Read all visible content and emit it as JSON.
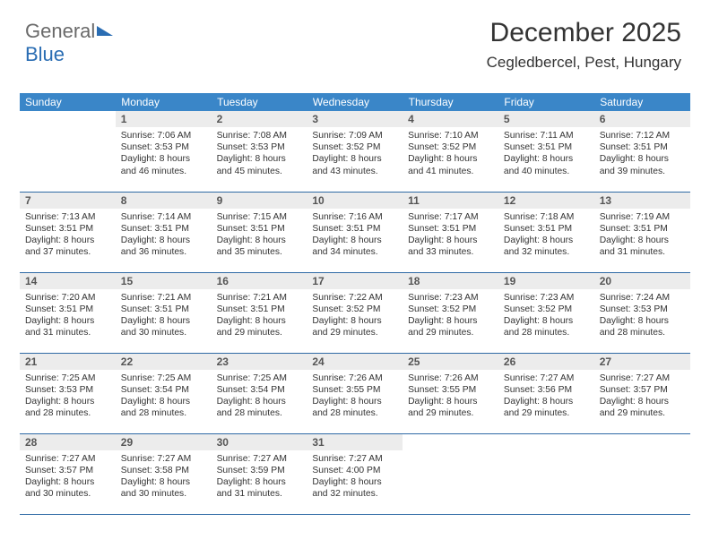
{
  "logo": {
    "part1": "General",
    "part2": "Blue"
  },
  "header": {
    "month": "December 2025",
    "location": "Cegledbercel, Pest, Hungary"
  },
  "colors": {
    "header_bg": "#3a86c8",
    "header_text": "#ffffff",
    "daynum_bg": "#ececec",
    "rule": "#2f6aa5",
    "brand_gray": "#6a6a6a",
    "brand_blue": "#2a6db3"
  },
  "weekdays": [
    "Sunday",
    "Monday",
    "Tuesday",
    "Wednesday",
    "Thursday",
    "Friday",
    "Saturday"
  ],
  "weeks": [
    [
      {
        "day": "",
        "sunrise": "",
        "sunset": "",
        "daylight": ""
      },
      {
        "day": "1",
        "sunrise": "Sunrise: 7:06 AM",
        "sunset": "Sunset: 3:53 PM",
        "daylight": "Daylight: 8 hours and 46 minutes."
      },
      {
        "day": "2",
        "sunrise": "Sunrise: 7:08 AM",
        "sunset": "Sunset: 3:53 PM",
        "daylight": "Daylight: 8 hours and 45 minutes."
      },
      {
        "day": "3",
        "sunrise": "Sunrise: 7:09 AM",
        "sunset": "Sunset: 3:52 PM",
        "daylight": "Daylight: 8 hours and 43 minutes."
      },
      {
        "day": "4",
        "sunrise": "Sunrise: 7:10 AM",
        "sunset": "Sunset: 3:52 PM",
        "daylight": "Daylight: 8 hours and 41 minutes."
      },
      {
        "day": "5",
        "sunrise": "Sunrise: 7:11 AM",
        "sunset": "Sunset: 3:51 PM",
        "daylight": "Daylight: 8 hours and 40 minutes."
      },
      {
        "day": "6",
        "sunrise": "Sunrise: 7:12 AM",
        "sunset": "Sunset: 3:51 PM",
        "daylight": "Daylight: 8 hours and 39 minutes."
      }
    ],
    [
      {
        "day": "7",
        "sunrise": "Sunrise: 7:13 AM",
        "sunset": "Sunset: 3:51 PM",
        "daylight": "Daylight: 8 hours and 37 minutes."
      },
      {
        "day": "8",
        "sunrise": "Sunrise: 7:14 AM",
        "sunset": "Sunset: 3:51 PM",
        "daylight": "Daylight: 8 hours and 36 minutes."
      },
      {
        "day": "9",
        "sunrise": "Sunrise: 7:15 AM",
        "sunset": "Sunset: 3:51 PM",
        "daylight": "Daylight: 8 hours and 35 minutes."
      },
      {
        "day": "10",
        "sunrise": "Sunrise: 7:16 AM",
        "sunset": "Sunset: 3:51 PM",
        "daylight": "Daylight: 8 hours and 34 minutes."
      },
      {
        "day": "11",
        "sunrise": "Sunrise: 7:17 AM",
        "sunset": "Sunset: 3:51 PM",
        "daylight": "Daylight: 8 hours and 33 minutes."
      },
      {
        "day": "12",
        "sunrise": "Sunrise: 7:18 AM",
        "sunset": "Sunset: 3:51 PM",
        "daylight": "Daylight: 8 hours and 32 minutes."
      },
      {
        "day": "13",
        "sunrise": "Sunrise: 7:19 AM",
        "sunset": "Sunset: 3:51 PM",
        "daylight": "Daylight: 8 hours and 31 minutes."
      }
    ],
    [
      {
        "day": "14",
        "sunrise": "Sunrise: 7:20 AM",
        "sunset": "Sunset: 3:51 PM",
        "daylight": "Daylight: 8 hours and 31 minutes."
      },
      {
        "day": "15",
        "sunrise": "Sunrise: 7:21 AM",
        "sunset": "Sunset: 3:51 PM",
        "daylight": "Daylight: 8 hours and 30 minutes."
      },
      {
        "day": "16",
        "sunrise": "Sunrise: 7:21 AM",
        "sunset": "Sunset: 3:51 PM",
        "daylight": "Daylight: 8 hours and 29 minutes."
      },
      {
        "day": "17",
        "sunrise": "Sunrise: 7:22 AM",
        "sunset": "Sunset: 3:52 PM",
        "daylight": "Daylight: 8 hours and 29 minutes."
      },
      {
        "day": "18",
        "sunrise": "Sunrise: 7:23 AM",
        "sunset": "Sunset: 3:52 PM",
        "daylight": "Daylight: 8 hours and 29 minutes."
      },
      {
        "day": "19",
        "sunrise": "Sunrise: 7:23 AM",
        "sunset": "Sunset: 3:52 PM",
        "daylight": "Daylight: 8 hours and 28 minutes."
      },
      {
        "day": "20",
        "sunrise": "Sunrise: 7:24 AM",
        "sunset": "Sunset: 3:53 PM",
        "daylight": "Daylight: 8 hours and 28 minutes."
      }
    ],
    [
      {
        "day": "21",
        "sunrise": "Sunrise: 7:25 AM",
        "sunset": "Sunset: 3:53 PM",
        "daylight": "Daylight: 8 hours and 28 minutes."
      },
      {
        "day": "22",
        "sunrise": "Sunrise: 7:25 AM",
        "sunset": "Sunset: 3:54 PM",
        "daylight": "Daylight: 8 hours and 28 minutes."
      },
      {
        "day": "23",
        "sunrise": "Sunrise: 7:25 AM",
        "sunset": "Sunset: 3:54 PM",
        "daylight": "Daylight: 8 hours and 28 minutes."
      },
      {
        "day": "24",
        "sunrise": "Sunrise: 7:26 AM",
        "sunset": "Sunset: 3:55 PM",
        "daylight": "Daylight: 8 hours and 28 minutes."
      },
      {
        "day": "25",
        "sunrise": "Sunrise: 7:26 AM",
        "sunset": "Sunset: 3:55 PM",
        "daylight": "Daylight: 8 hours and 29 minutes."
      },
      {
        "day": "26",
        "sunrise": "Sunrise: 7:27 AM",
        "sunset": "Sunset: 3:56 PM",
        "daylight": "Daylight: 8 hours and 29 minutes."
      },
      {
        "day": "27",
        "sunrise": "Sunrise: 7:27 AM",
        "sunset": "Sunset: 3:57 PM",
        "daylight": "Daylight: 8 hours and 29 minutes."
      }
    ],
    [
      {
        "day": "28",
        "sunrise": "Sunrise: 7:27 AM",
        "sunset": "Sunset: 3:57 PM",
        "daylight": "Daylight: 8 hours and 30 minutes."
      },
      {
        "day": "29",
        "sunrise": "Sunrise: 7:27 AM",
        "sunset": "Sunset: 3:58 PM",
        "daylight": "Daylight: 8 hours and 30 minutes."
      },
      {
        "day": "30",
        "sunrise": "Sunrise: 7:27 AM",
        "sunset": "Sunset: 3:59 PM",
        "daylight": "Daylight: 8 hours and 31 minutes."
      },
      {
        "day": "31",
        "sunrise": "Sunrise: 7:27 AM",
        "sunset": "Sunset: 4:00 PM",
        "daylight": "Daylight: 8 hours and 32 minutes."
      },
      {
        "day": "",
        "sunrise": "",
        "sunset": "",
        "daylight": ""
      },
      {
        "day": "",
        "sunrise": "",
        "sunset": "",
        "daylight": ""
      },
      {
        "day": "",
        "sunrise": "",
        "sunset": "",
        "daylight": ""
      }
    ]
  ]
}
